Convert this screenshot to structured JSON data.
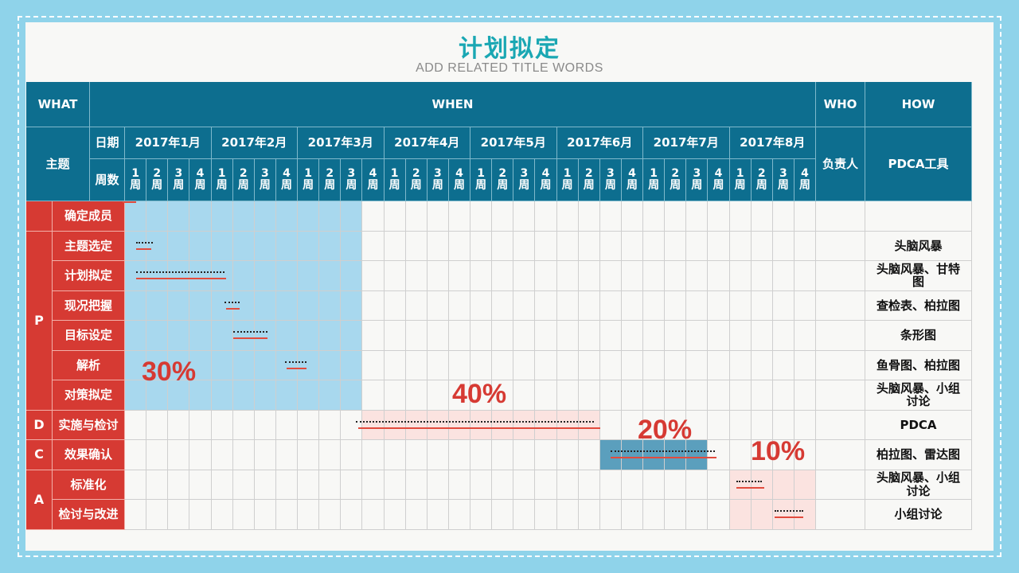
{
  "page": {
    "title": "计划拟定",
    "subtitle": "ADD RELATED TITLE WORDS"
  },
  "headers": {
    "what": "WHAT",
    "when": "WHEN",
    "who": "WHO",
    "how": "HOW",
    "theme": "主题",
    "date": "日期",
    "week_count": "周数",
    "owner": "负责人",
    "tool": "PDCA工具"
  },
  "months": [
    "2017年1月",
    "2017年2月",
    "2017年3月",
    "2017年4月",
    "2017年5月",
    "2017年6月",
    "2017年7月",
    "2017年8月"
  ],
  "weeks": [
    "1周",
    "2周",
    "3周",
    "4周"
  ],
  "phases": [
    {
      "label": "",
      "start_row": 0,
      "span": 1
    },
    {
      "label": "P",
      "start_row": 1,
      "span": 6
    },
    {
      "label": "D",
      "start_row": 7,
      "span": 1
    },
    {
      "label": "C",
      "start_row": 8,
      "span": 1
    },
    {
      "label": "A",
      "start_row": 9,
      "span": 2
    }
  ],
  "rows": [
    {
      "topic": "确定成员",
      "tool": ""
    },
    {
      "topic": "主题选定",
      "tool": "头脑风暴"
    },
    {
      "topic": "计划拟定",
      "tool": "头脑风暴、甘特图"
    },
    {
      "topic": "现况把握",
      "tool": "查检表、柏拉图"
    },
    {
      "topic": "目标设定",
      "tool": "条形图"
    },
    {
      "topic": "解析",
      "tool": "鱼骨图、柏拉图"
    },
    {
      "topic": "对策拟定",
      "tool": "头脑风暴、小组讨论"
    },
    {
      "topic": "实施与检讨",
      "tool": "PDCA"
    },
    {
      "topic": "效果确认",
      "tool": "柏拉图、雷达图"
    },
    {
      "topic": "标准化",
      "tool": "头脑风暴、小组讨论"
    },
    {
      "topic": "检讨与改进",
      "tool": "小组讨论"
    }
  ],
  "phase_percentages": [
    {
      "phase": "P",
      "text": "30%",
      "color": "#a8d8ee"
    },
    {
      "phase": "D",
      "text": "40%",
      "color": "#fbe3e0"
    },
    {
      "phase": "C",
      "text": "20%",
      "color": "#5b9fbd"
    },
    {
      "phase": "A",
      "text": "10%",
      "color": "#fbe3e0"
    }
  ],
  "colors": {
    "header": "#0d6e8f",
    "phase": "#d63a33",
    "plan_line": "#222222",
    "actual_line": "#e24b3d",
    "background": "#8fd3ea"
  }
}
